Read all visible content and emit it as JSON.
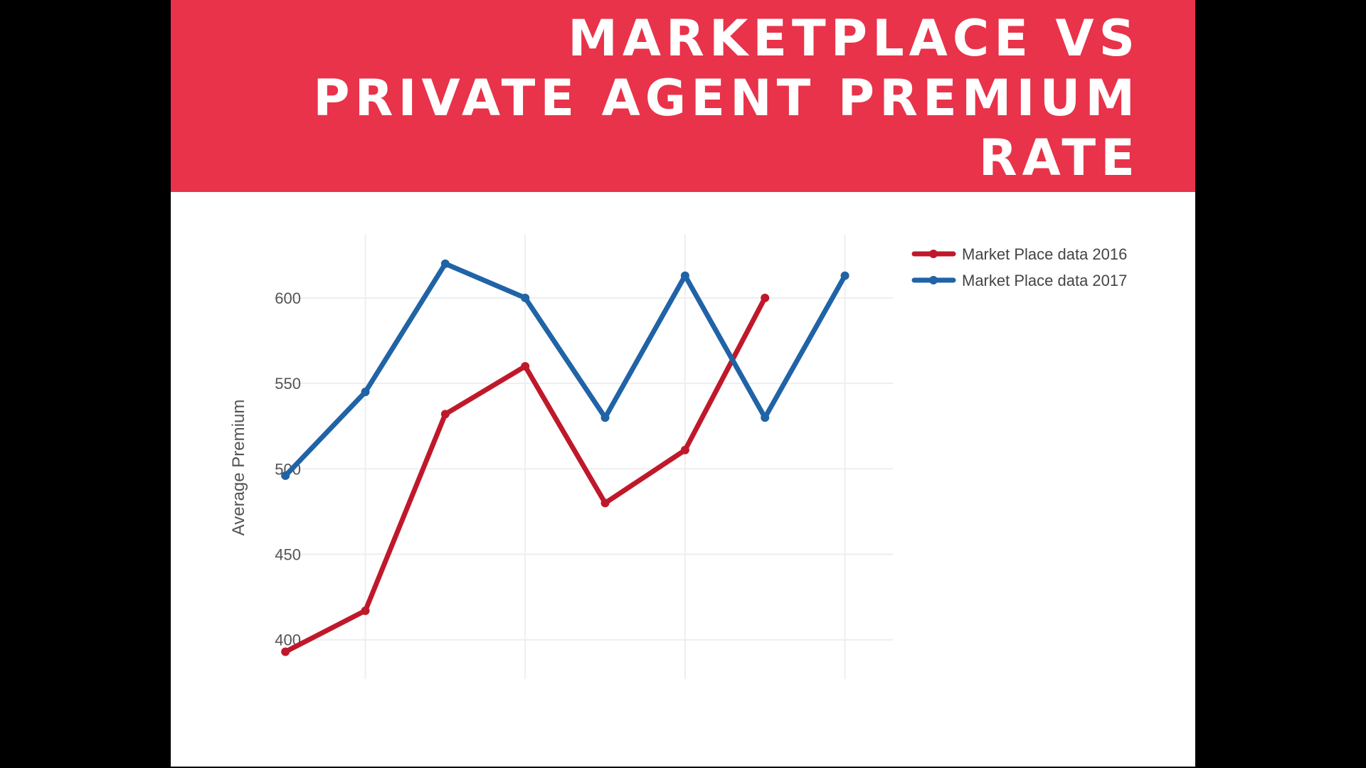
{
  "title_lines": [
    "MARKETPLACE VS",
    "PRIVATE AGENT PREMIUM",
    "RATE"
  ],
  "colors": {
    "banner": "#e8334a",
    "series_2016": "#c0182b",
    "series_2017": "#2063a6",
    "grid": "#eeeeee"
  },
  "chart_data": {
    "type": "line",
    "title": "",
    "xlabel": "",
    "ylabel": "Average Premium",
    "x": [
      1,
      2,
      3,
      4,
      5,
      6,
      7,
      8
    ],
    "xlim": [
      0.5,
      8.6
    ],
    "ylim": [
      377,
      637
    ],
    "yticks": [
      400,
      450,
      500,
      550,
      600
    ],
    "xgrid": [
      2,
      4,
      6,
      8
    ],
    "x_tick_labels_shown": false,
    "grid": true,
    "legend_position": "top-right",
    "series": [
      {
        "name": "Market Place data 2016",
        "color": "#c0182b",
        "values": [
          393,
          417,
          532,
          560,
          480,
          511,
          600,
          null
        ]
      },
      {
        "name": "Market Place data 2017",
        "color": "#2063a6",
        "values": [
          496,
          545,
          620,
          600,
          530,
          613,
          530,
          613
        ]
      }
    ]
  }
}
